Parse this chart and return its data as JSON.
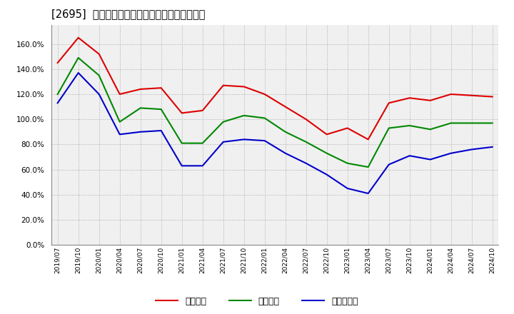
{
  "title": "[2695]  流動比率、当座比率、現預金比率の推移",
  "x_labels": [
    "2019/07",
    "2019/10",
    "2020/01",
    "2020/04",
    "2020/07",
    "2020/10",
    "2021/01",
    "2021/04",
    "2021/07",
    "2021/10",
    "2022/01",
    "2022/04",
    "2022/07",
    "2022/10",
    "2023/01",
    "2023/04",
    "2023/07",
    "2023/10",
    "2024/01",
    "2024/04",
    "2024/07",
    "2024/10"
  ],
  "ryudo": [
    145,
    165,
    152,
    120,
    124,
    125,
    105,
    107,
    127,
    126,
    120,
    110,
    100,
    88,
    93,
    84,
    113,
    117,
    115,
    120,
    119,
    118
  ],
  "toza": [
    120,
    149,
    135,
    98,
    109,
    108,
    81,
    81,
    98,
    103,
    101,
    90,
    82,
    73,
    65,
    62,
    93,
    95,
    92,
    97,
    97,
    97
  ],
  "genyo": [
    113,
    137,
    120,
    88,
    90,
    91,
    63,
    63,
    82,
    84,
    83,
    73,
    65,
    56,
    45,
    41,
    64,
    71,
    68,
    73,
    76,
    78
  ],
  "ryudo_color": "#dd0000",
  "toza_color": "#008800",
  "genyo_color": "#0000cc",
  "legend_ryudo": "流動比率",
  "legend_toza": "当座比率",
  "legend_genyo": "現預金比率",
  "ylim": [
    0,
    175
  ],
  "yticks": [
    0,
    20,
    40,
    60,
    80,
    100,
    120,
    140,
    160
  ],
  "background_color": "#ffffff",
  "plot_bg_color": "#f0f0f0"
}
